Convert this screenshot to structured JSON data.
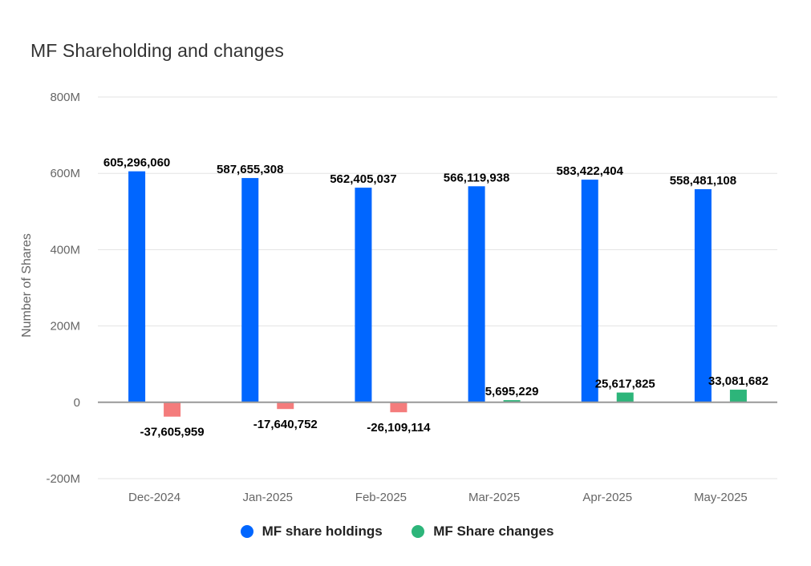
{
  "chart_data": {
    "type": "bar",
    "title": "MF Shareholding and changes",
    "ylabel": "Number of Shares",
    "xlabel": "",
    "categories": [
      "Dec-2024",
      "Jan-2025",
      "Feb-2025",
      "Mar-2025",
      "Apr-2025",
      "May-2025"
    ],
    "ylim": [
      -200000000,
      800000000
    ],
    "yticks": [
      {
        "value": 800000000,
        "label": "800M"
      },
      {
        "value": 600000000,
        "label": "600M"
      },
      {
        "value": 400000000,
        "label": "400M"
      },
      {
        "value": 200000000,
        "label": "200M"
      },
      {
        "value": 0,
        "label": "0"
      },
      {
        "value": -200000000,
        "label": "-200M"
      }
    ],
    "grid": true,
    "legend_position": "bottom",
    "series": [
      {
        "name": "MF share holdings",
        "color": "#0066ff",
        "values": [
          605296060,
          587655308,
          562405037,
          566119938,
          583422404,
          558481108
        ],
        "labels": [
          "605,296,060",
          "587,655,308",
          "562,405,037",
          "566,119,938",
          "583,422,404",
          "558,481,108"
        ]
      },
      {
        "name": "MF Share changes",
        "color": "#2db57a",
        "negative_color": "#f47c7c",
        "values": [
          -37605959,
          -17640752,
          -26109114,
          5695229,
          25617825,
          33081682
        ],
        "labels": [
          "-37,605,959",
          "-17,640,752",
          "-26,109,114",
          "5,695,229",
          "25,617,825",
          "33,081,682"
        ]
      }
    ]
  }
}
